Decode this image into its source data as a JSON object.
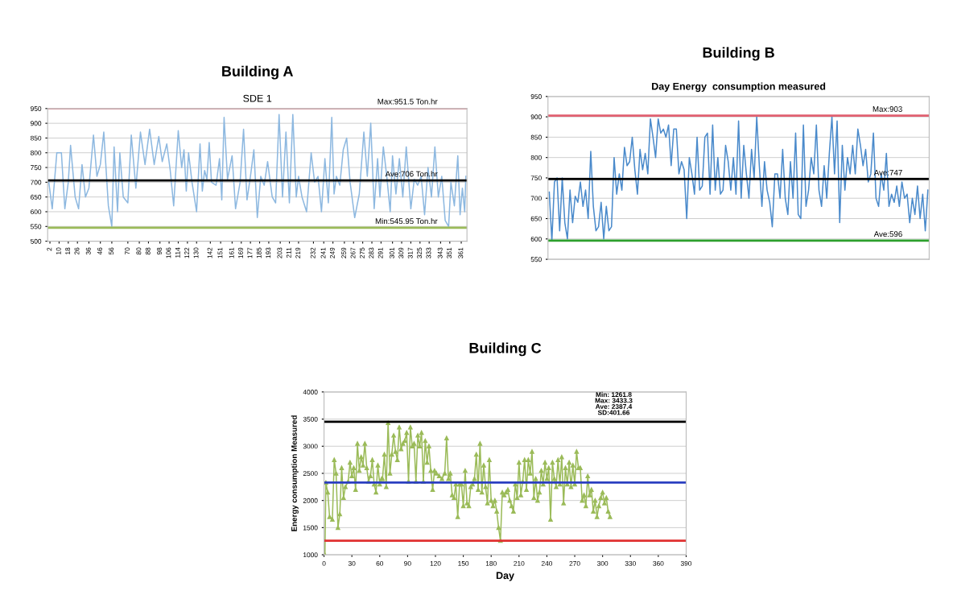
{
  "chart_data": [
    {
      "type": "line",
      "title": "Building A",
      "subtitle": "SDE 1",
      "x": [
        1,
        4,
        8,
        12,
        15,
        18,
        20,
        24,
        27,
        30,
        33,
        36,
        40,
        43,
        46,
        49,
        53,
        56,
        58,
        61,
        63,
        66,
        70,
        73,
        77,
        81,
        85,
        89,
        93,
        97,
        100,
        104,
        107,
        110,
        114,
        117,
        119,
        121,
        123,
        126,
        130,
        133,
        135,
        137,
        139,
        141,
        143,
        147,
        150,
        152,
        154,
        157,
        161,
        164,
        168,
        171,
        174,
        177,
        180,
        183,
        186,
        189,
        192,
        196,
        199,
        202,
        205,
        208,
        211,
        214,
        217,
        219,
        222,
        226,
        230,
        233,
        236,
        239,
        242,
        245,
        248,
        250,
        252,
        255,
        258,
        261,
        264,
        268,
        272,
        276,
        279,
        282,
        285,
        288,
        290,
        293,
        296,
        299,
        301,
        304,
        307,
        310,
        313,
        317,
        320,
        323,
        326,
        329,
        332,
        335,
        338,
        341,
        344,
        347,
        350,
        352,
        355,
        358,
        360,
        362,
        364,
        365
      ],
      "series": [
        {
          "color": "#8db8e0",
          "values": [
            700,
            610,
            800,
            800,
            610,
            700,
            825,
            650,
            610,
            760,
            650,
            680,
            860,
            720,
            760,
            870,
            620,
            550,
            820,
            600,
            800,
            650,
            630,
            860,
            680,
            870,
            760,
            880,
            760,
            855,
            770,
            830,
            740,
            620,
            875,
            750,
            810,
            670,
            800,
            700,
            600,
            830,
            670,
            740,
            710,
            835,
            700,
            690,
            780,
            640,
            920,
            710,
            790,
            610,
            700,
            880,
            640,
            720,
            810,
            580,
            720,
            690,
            770,
            650,
            630,
            930,
            650,
            870,
            630,
            930,
            650,
            720,
            650,
            600,
            800,
            700,
            720,
            600,
            780,
            630,
            920,
            660,
            720,
            690,
            810,
            850,
            700,
            580,
            660,
            870,
            720,
            900,
            610,
            780,
            650,
            820,
            720,
            600,
            790,
            660,
            780,
            650,
            820,
            610,
            710,
            690,
            720,
            590,
            750,
            650,
            820,
            650,
            720,
            570,
            550,
            700,
            620,
            790,
            590,
            680,
            600,
            720
          ]
        }
      ],
      "xlim": [
        0,
        366
      ],
      "xticks": [
        2,
        10,
        18,
        26,
        36,
        46,
        56,
        70,
        80,
        88,
        98,
        106,
        114,
        122,
        130,
        142,
        151,
        161,
        169,
        177,
        185,
        193,
        203,
        211,
        219,
        232,
        241,
        249,
        259,
        267,
        275,
        283,
        291,
        301,
        309,
        317,
        325,
        333,
        343,
        351,
        361
      ],
      "ylim": [
        500,
        950
      ],
      "yticks": [
        500,
        550,
        600,
        650,
        700,
        750,
        800,
        850,
        900,
        950
      ],
      "grid": "y",
      "legend": false,
      "ref_lines": [
        {
          "axis": "y",
          "value": 951.5,
          "label": "Max:951.5 Ton.hr",
          "color": "#e06070"
        },
        {
          "axis": "y",
          "value": 706,
          "label": "Ave:706 Ton.hr",
          "color": "#000000"
        },
        {
          "axis": "y",
          "value": 545.95,
          "label": "Min:545.95 Ton.hr",
          "color": "#9bbb59"
        }
      ]
    },
    {
      "type": "line",
      "title": "Building B",
      "subtitle": "Day Energy  consumption measured",
      "categories": [
        null,
        null,
        null,
        null,
        null,
        null,
        null,
        null,
        null,
        null,
        null,
        null,
        null,
        null,
        null,
        null,
        null,
        null,
        null,
        null,
        null,
        null,
        null,
        null,
        null,
        null,
        null,
        null,
        null,
        null,
        null,
        null,
        null,
        null,
        null,
        null,
        null,
        null,
        null,
        null,
        null,
        null,
        null,
        null,
        null,
        null,
        null,
        null,
        null,
        null,
        null,
        null,
        null,
        null,
        null,
        null,
        null,
        null,
        null,
        null,
        null,
        null,
        null,
        null,
        null,
        null,
        null,
        null,
        null,
        null,
        null,
        null,
        null,
        null,
        null,
        null,
        null,
        null,
        null,
        null,
        null,
        null,
        null,
        null,
        null,
        null,
        null,
        null,
        null,
        null,
        null,
        null,
        null,
        null,
        null,
        null,
        null,
        null,
        null,
        null,
        null,
        null,
        null,
        null,
        null,
        null,
        null,
        null,
        null,
        null,
        null,
        null,
        null,
        null,
        null,
        null,
        null,
        null,
        null,
        null,
        null,
        null,
        null,
        null,
        null,
        null,
        null,
        null,
        null,
        null,
        null,
        null,
        null,
        null,
        null,
        null,
        null,
        null,
        null,
        null,
        null,
        null,
        null,
        null,
        null,
        null,
        null
      ],
      "series": [
        {
          "color": "#4a8acb",
          "values": [
            715,
            595,
            740,
            750,
            620,
            750,
            640,
            600,
            720,
            640,
            705,
            690,
            740,
            680,
            720,
            650,
            815,
            680,
            620,
            630,
            690,
            600,
            680,
            620,
            630,
            800,
            710,
            760,
            720,
            825,
            780,
            790,
            850,
            770,
            710,
            820,
            770,
            810,
            760,
            895,
            850,
            800,
            895,
            860,
            870,
            850,
            880,
            780,
            870,
            870,
            760,
            790,
            770,
            650,
            800,
            760,
            710,
            850,
            720,
            730,
            850,
            860,
            710,
            880,
            720,
            800,
            710,
            720,
            830,
            790,
            720,
            800,
            710,
            890,
            700,
            830,
            760,
            700,
            820,
            750,
            900,
            780,
            680,
            790,
            720,
            690,
            630,
            760,
            760,
            700,
            820,
            700,
            660,
            790,
            700,
            860,
            660,
            650,
            880,
            680,
            720,
            800,
            760,
            880,
            720,
            680,
            780,
            700,
            810,
            900,
            760,
            890,
            640,
            830,
            720,
            800,
            760,
            830,
            760,
            870,
            830,
            780,
            820,
            740,
            760,
            860,
            700,
            680,
            760,
            720,
            810,
            680,
            710,
            690,
            730,
            680,
            740,
            700,
            710,
            640,
            700,
            660,
            730,
            650,
            710,
            620,
            720
          ]
        }
      ],
      "ylim": [
        550,
        950
      ],
      "yticks": [
        550,
        600,
        650,
        700,
        750,
        800,
        850,
        900,
        950
      ],
      "grid": "y",
      "legend": false,
      "tick_labels": "y",
      "ref_lines": [
        {
          "axis": "y",
          "value": 903,
          "label": "Max:903",
          "color": "#e06070"
        },
        {
          "axis": "y",
          "value": 747,
          "label": "Ave:747",
          "color": "#000000"
        },
        {
          "axis": "y",
          "value": 596,
          "label": "Ave:596",
          "color": "#2ca02c"
        }
      ]
    },
    {
      "type": "line",
      "title": "Building C",
      "xlabel": "Day",
      "ylabel": "Energy consumption Measured",
      "marker": "triangle",
      "x": [
        1,
        2,
        4,
        6,
        9,
        11,
        13,
        15,
        17,
        19,
        21,
        23,
        26,
        28,
        30,
        32,
        34,
        36,
        38,
        40,
        42,
        44,
        46,
        48,
        50,
        52,
        54,
        56,
        58,
        60,
        62,
        63,
        65,
        67,
        69,
        71,
        73,
        75,
        77,
        79,
        81,
        83,
        85,
        87,
        89,
        91,
        93,
        95,
        97,
        99,
        101,
        103,
        105,
        107,
        109,
        111,
        113,
        115,
        117,
        119,
        121,
        124,
        127,
        130,
        132,
        134,
        136,
        138,
        140,
        142,
        144,
        146,
        148,
        150,
        152,
        154,
        156,
        158,
        160,
        162,
        164,
        166,
        168,
        170,
        172,
        174,
        176,
        178,
        180,
        182,
        184,
        186,
        188,
        190,
        192,
        194,
        196,
        198,
        200,
        202,
        204,
        206,
        208,
        210,
        212,
        214,
        216,
        218,
        220,
        222,
        224,
        226,
        228,
        230,
        232,
        234,
        236,
        238,
        240,
        242,
        244,
        246,
        248,
        250,
        252,
        254,
        256,
        258,
        260,
        262,
        264,
        266,
        268,
        270,
        272,
        274,
        276,
        278,
        280,
        282,
        284,
        286,
        288,
        290,
        292,
        294,
        296,
        298,
        300,
        302,
        304,
        306,
        308
      ],
      "series": [
        {
          "color": "#9bbb59",
          "values": [
            1000,
            2330,
            2150,
            1700,
            1650,
            2750,
            2500,
            1500,
            1750,
            2600,
            2050,
            2250,
            2350,
            2700,
            2450,
            2600,
            2200,
            3050,
            2550,
            2800,
            2650,
            3050,
            2600,
            2350,
            2450,
            2750,
            2300,
            2150,
            2650,
            2300,
            2400,
            2400,
            2850,
            2250,
            3430,
            2500,
            2850,
            3200,
            2900,
            2750,
            3350,
            2950,
            3050,
            3100,
            3250,
            2350,
            3350,
            3000,
            3050,
            2350,
            3200,
            3000,
            3250,
            2350,
            3100,
            2700,
            3000,
            2550,
            2200,
            2550,
            2500,
            2450,
            2400,
            2500,
            3150,
            2400,
            2500,
            2100,
            2050,
            2300,
            1700,
            2300,
            2300,
            1900,
            2550,
            1950,
            1900,
            2250,
            2300,
            2400,
            2850,
            2200,
            3050,
            2150,
            2650,
            2250,
            1950,
            2750,
            2000,
            1900,
            2000,
            1800,
            1500,
            1260,
            2150,
            2100,
            2150,
            2200,
            2000,
            1900,
            1800,
            2300,
            2050,
            2700,
            2100,
            2350,
            2750,
            2200,
            2750,
            2500,
            2900,
            2050,
            2400,
            2000,
            2150,
            2550,
            2300,
            2700,
            2400,
            2600,
            1650,
            2700,
            2400,
            2250,
            2750,
            2300,
            2800,
            1950,
            2600,
            2300,
            2700,
            2250,
            2650,
            2300,
            2900,
            2600,
            2600,
            2000,
            2100,
            1900,
            2450,
            2100,
            2200,
            1800,
            2000,
            1700,
            1900,
            2050,
            2150,
            1950,
            2050,
            1800,
            1700
          ]
        }
      ],
      "xlim": [
        0,
        390
      ],
      "xticks": [
        0,
        30,
        60,
        90,
        120,
        150,
        180,
        210,
        240,
        270,
        300,
        330,
        360,
        390
      ],
      "ylim": [
        1000,
        4000
      ],
      "yticks": [
        1000,
        1500,
        2000,
        2500,
        3000,
        3500,
        4000
      ],
      "grid": "y",
      "legend": false,
      "annotations": [
        "Min: 1261.8\nMax: 3433.3\nAve: 2387.4\nSD:401.66"
      ],
      "ref_lines": [
        {
          "axis": "y",
          "value": 3450,
          "color": "#000000"
        },
        {
          "axis": "y",
          "value": 2330,
          "color": "#2b3fc0"
        },
        {
          "axis": "y",
          "value": 1260,
          "color": "#e03030"
        }
      ]
    }
  ]
}
